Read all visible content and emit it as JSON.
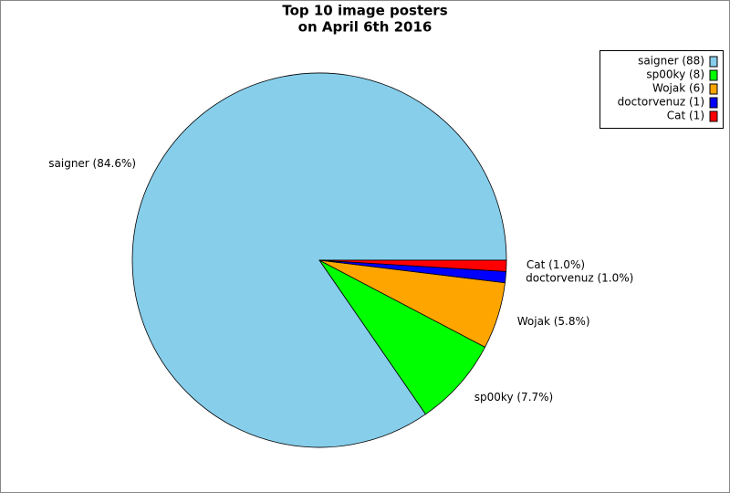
{
  "chart_data": {
    "type": "pie",
    "title": [
      "Top 10 image posters",
      "on April 6th 2016"
    ],
    "categories": [
      "saigner",
      "sp00ky",
      "Wojak",
      "doctorvenuz",
      "Cat"
    ],
    "values": [
      88,
      8,
      6,
      1,
      1
    ],
    "value_labels": [
      "saigner (88)",
      "sp00ky (8)",
      "Wojak (6)",
      "doctorvenuz (1)",
      "Cat (1)"
    ],
    "percents": [
      84.6,
      7.7,
      5.8,
      1.0,
      1.0
    ],
    "percent_labels": [
      "saigner (84.6%)",
      "sp00ky (7.7%)",
      "Wojak (5.8%)",
      "doctorvenuz (1.0%)",
      "Cat (1.0%)"
    ],
    "colors": [
      "#87ceeb",
      "#00ff00",
      "#ffa500",
      "#0000ff",
      "#ff0000"
    ],
    "legend": "upper right"
  }
}
